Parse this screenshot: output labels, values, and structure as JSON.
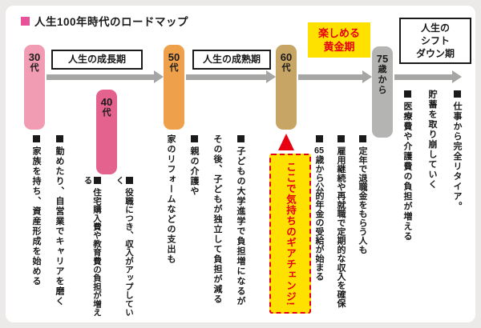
{
  "title": {
    "text": "人生100年時代のロードマップ"
  },
  "colors": {
    "accent_pink": "#e85298",
    "gold": "#ffe100",
    "red": "#e60012",
    "arrow_gray": "#a6a6a4"
  },
  "timeline": {
    "stages": [
      {
        "id": "g30",
        "num": "30",
        "suffix": "代",
        "color": "#f19cb2"
      },
      {
        "id": "g40",
        "num": "40",
        "suffix": "代",
        "color": "#e3628e"
      },
      {
        "id": "g50",
        "num": "50",
        "suffix": "代",
        "color": "#efa04a"
      },
      {
        "id": "g60",
        "num": "60",
        "suffix": "代",
        "color": "#c7a565"
      },
      {
        "id": "g75",
        "num": "75",
        "suffix": "歳から",
        "color": "#b4b4b2"
      }
    ],
    "periods": [
      {
        "lines": [
          "人生の成長期"
        ],
        "style": "outline"
      },
      {
        "lines": [
          "人生の成熟期"
        ],
        "style": "outline"
      },
      {
        "lines": [
          "楽しめる",
          "黄金期"
        ],
        "style": "gold"
      },
      {
        "lines": [
          "人生の",
          "シフト",
          "ダウン期"
        ],
        "style": "outline"
      }
    ]
  },
  "gear_change": {
    "label": "ここで気持ちのギアチェンジ!"
  },
  "groups": [
    {
      "id": "g30",
      "stage": "30代",
      "items": [
        {
          "columns": [
            "勤めたり、自営業でキャリアを磨く"
          ]
        },
        {
          "columns": [
            "家族を持ち、資産形成を始める"
          ]
        }
      ]
    },
    {
      "id": "g40",
      "stage": "40代",
      "items": [
        {
          "columns": [
            "役職につき、収入がアップしていく"
          ]
        },
        {
          "columns": [
            "住宅購入費や教育費の負担が増える"
          ]
        }
      ]
    },
    {
      "id": "g50",
      "stage": "50代",
      "items": [
        {
          "columns": [
            "子どもの大学進学で負担増になるが",
            "その後、子どもが独立して負担が減る"
          ]
        },
        {
          "columns": [
            "親の介護や",
            "家のリフォームなどの支出も"
          ]
        }
      ]
    },
    {
      "id": "g60",
      "stage": "60代",
      "items": [
        {
          "columns": [
            "定年で退職金をもらう人も"
          ]
        },
        {
          "columns": [
            "雇用継続や再就職で定期的な収入を確保"
          ]
        },
        {
          "columns": [
            "65歳から公的年金の受給が始まる"
          ]
        }
      ]
    },
    {
      "id": "g75",
      "stage": "75歳から",
      "items": [
        {
          "columns": [
            "仕事から完全リタイア。",
            "貯蓄を取り崩していく"
          ]
        },
        {
          "columns": [
            "医療費や介護費の負担が増える"
          ]
        }
      ]
    }
  ]
}
